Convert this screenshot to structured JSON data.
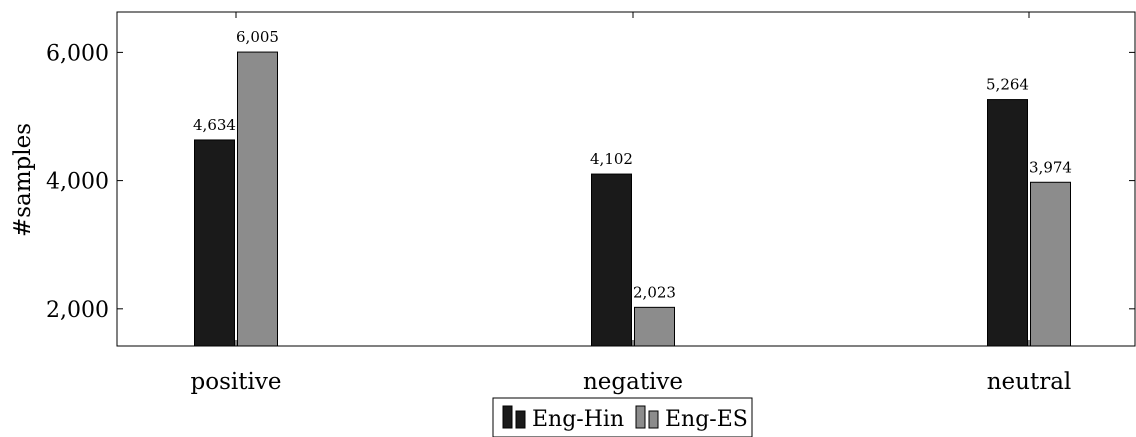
{
  "chart_data": {
    "type": "bar",
    "categories": [
      "positive",
      "negative",
      "neutral"
    ],
    "series": [
      {
        "name": "Eng-Hin",
        "values": [
          4634,
          4102,
          5264
        ],
        "color": "#1a1a1a"
      },
      {
        "name": "Eng-ES",
        "values": [
          6005,
          2023,
          3974
        ],
        "color": "#8c8c8c"
      }
    ],
    "value_labels": [
      [
        "4,634",
        "4,102",
        "5,264"
      ],
      [
        "6,005",
        "2,023",
        "3,974"
      ]
    ],
    "ylabel": "#samples",
    "xlabel": "",
    "title": "",
    "ylim": [
      1420,
      6630
    ],
    "yticks": [
      2000,
      4000,
      6000
    ],
    "ytick_labels": [
      "2,000",
      "4,000",
      "6,000"
    ],
    "grid": false,
    "legend_position": "bottom-center"
  }
}
